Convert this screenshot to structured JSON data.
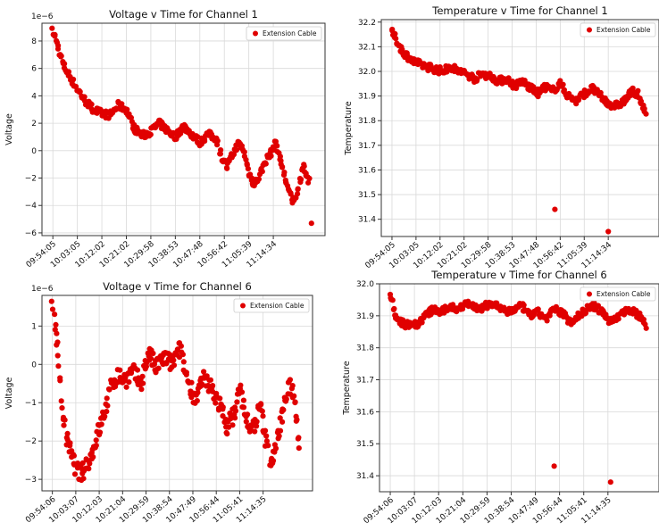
{
  "colors": {
    "marker": "#e00000",
    "grid": "#d9d9d9",
    "frame": "#333333"
  },
  "chart_data": [
    {
      "type": "scatter",
      "title": "Voltage v Time for Channel 1",
      "ylabel": "Voltage",
      "y_multiplier_label": "1e−6",
      "ylim": [
        -6.2,
        9.3
      ],
      "y_ticks": [
        -6,
        -4,
        -2,
        0,
        2,
        4,
        6,
        8
      ],
      "y_tick_labels": [
        "−6",
        "−4",
        "−2",
        "0",
        "2",
        "4",
        "6",
        "8"
      ],
      "x_tick_labels": [
        "09:54:05",
        "10:03:05",
        "10:12:02",
        "10:21:02",
        "10:29:58",
        "10:38:53",
        "10:47:48",
        "10:56:42",
        "11:05:39",
        "11:14:34"
      ],
      "legend": {
        "label": "Extension Cable",
        "position": "top-right"
      },
      "grid": true,
      "series": [
        {
          "name": "Extension Cable",
          "x_minutes": [
            0,
            1,
            2,
            3,
            4,
            6,
            8,
            10,
            12,
            15,
            18,
            21,
            24,
            27,
            30,
            33,
            36,
            39,
            42,
            45,
            48,
            51,
            54,
            57,
            60,
            62,
            64,
            66,
            68,
            70,
            72,
            74,
            76,
            78,
            80,
            82,
            84,
            86,
            88,
            90,
            91,
            92,
            93,
            94
          ],
          "values": [
            8.7,
            8.2,
            7.5,
            6.8,
            6.2,
            5.5,
            4.8,
            4.2,
            3.6,
            3.0,
            2.7,
            2.6,
            3.3,
            3.0,
            1.6,
            1.1,
            1.4,
            2.0,
            1.5,
            1.0,
            1.8,
            1.2,
            0.6,
            1.2,
            0.9,
            -0.4,
            -1.2,
            -0.3,
            0.5,
            0.1,
            -1.6,
            -2.5,
            -1.8,
            -0.8,
            -0.2,
            0.6,
            -1.0,
            -2.5,
            -3.7,
            -3.0,
            -2.0,
            -1.0,
            -1.6,
            -2.3
          ]
        },
        {
          "name": "Extension Cable",
          "x_minutes": [
            95
          ],
          "values": [
            -5.3
          ]
        }
      ]
    },
    {
      "type": "scatter",
      "title": "Temperature v Time for Channel 1",
      "ylabel": "Temperature",
      "ylim": [
        31.33,
        32.21
      ],
      "y_ticks": [
        31.4,
        31.5,
        31.6,
        31.7,
        31.8,
        31.9,
        32.0,
        32.1,
        32.2
      ],
      "y_tick_labels": [
        "31.4",
        "31.5",
        "31.6",
        "31.7",
        "31.8",
        "31.9",
        "32.0",
        "32.1",
        "32.2"
      ],
      "x_tick_labels": [
        "09:54:05",
        "10:03:05",
        "10:12:02",
        "10:21:02",
        "10:29:58",
        "10:38:53",
        "10:47:48",
        "10:56:42",
        "11:05:39",
        "11:14:34"
      ],
      "legend": {
        "label": "Extension Cable",
        "position": "top-right"
      },
      "grid": true,
      "series": [
        {
          "name": "Extension Cable",
          "x_minutes": [
            0,
            2,
            4,
            6,
            8,
            10,
            13,
            16,
            19,
            22,
            25,
            28,
            31,
            34,
            37,
            40,
            43,
            46,
            49,
            52,
            55,
            57,
            60,
            63,
            66,
            69,
            72,
            75,
            78,
            81,
            84,
            87,
            90,
            92,
            94,
            95
          ],
          "values": [
            32.16,
            32.12,
            32.08,
            32.06,
            32.04,
            32.03,
            32.02,
            32.01,
            32.0,
            32.02,
            32.0,
            31.99,
            31.97,
            31.99,
            31.98,
            31.96,
            31.97,
            31.94,
            31.96,
            31.93,
            31.91,
            31.94,
            31.92,
            31.95,
            31.9,
            31.88,
            31.91,
            31.93,
            31.9,
            31.87,
            31.86,
            31.88,
            31.92,
            31.91,
            31.85,
            31.83
          ]
        },
        {
          "name": "Extension Cable",
          "x_minutes": [
            61,
            81
          ],
          "values": [
            31.44,
            31.35
          ]
        }
      ]
    },
    {
      "type": "scatter",
      "title": "Voltage v Time for Channel 6",
      "ylabel": "Voltage",
      "y_multiplier_label": "1e−6",
      "ylim": [
        -3.3,
        1.8
      ],
      "y_ticks": [
        -3,
        -2,
        -1,
        0,
        1
      ],
      "y_tick_labels": [
        "−3",
        "−2",
        "−1",
        "0",
        "1"
      ],
      "x_tick_labels": [
        "09:54:06",
        "10:03:07",
        "10:12:03",
        "10:21:04",
        "10:29:59",
        "10:38:54",
        "10:47:49",
        "10:56:44",
        "11:05:41",
        "11:14:35"
      ],
      "legend": {
        "label": "Extension Cable",
        "position": "top-right"
      },
      "grid": true,
      "series": [
        {
          "name": "Extension Cable",
          "x_minutes": [
            0,
            1,
            2,
            3,
            4,
            5,
            7,
            9,
            11,
            13,
            15,
            17,
            19,
            21,
            23,
            25,
            28,
            31,
            34,
            37,
            40,
            43,
            46,
            49,
            52,
            55,
            58,
            61,
            64,
            67,
            70,
            72,
            74,
            76,
            78,
            80,
            82,
            84,
            86,
            88,
            90,
            92,
            94,
            95
          ],
          "values": [
            1.6,
            1.2,
            0.4,
            -0.6,
            -1.2,
            -1.8,
            -2.3,
            -2.7,
            -2.9,
            -2.6,
            -2.4,
            -1.9,
            -1.5,
            -1.0,
            -0.5,
            -0.3,
            -0.4,
            -0.2,
            -0.5,
            0.3,
            -0.1,
            0.2,
            0.0,
            0.4,
            -0.4,
            -0.9,
            -0.4,
            -0.6,
            -1.0,
            -1.6,
            -1.3,
            -0.6,
            -1.2,
            -1.8,
            -1.5,
            -1.1,
            -2.0,
            -2.5,
            -2.2,
            -1.4,
            -0.8,
            -0.5,
            -1.4,
            -2.2
          ]
        }
      ]
    },
    {
      "type": "scatter",
      "title": "Temperature v Time for Channel 6",
      "ylabel": "Temperature",
      "ylim": [
        31.35,
        32.0
      ],
      "y_ticks": [
        31.4,
        31.5,
        31.6,
        31.7,
        31.8,
        31.9,
        32.0
      ],
      "y_tick_labels": [
        "31.4",
        "31.5",
        "31.6",
        "31.7",
        "31.8",
        "31.9",
        "32.0"
      ],
      "x_tick_labels": [
        "09:54:06",
        "10:03:07",
        "10:12:03",
        "10:21:04",
        "10:29:59",
        "10:38:54",
        "10:47:49",
        "10:56:44",
        "11:05:41",
        "11:14:35"
      ],
      "legend": {
        "label": "Extension Cable",
        "position": "top-right"
      },
      "grid": true,
      "series": [
        {
          "name": "Extension Cable",
          "x_minutes": [
            0,
            1,
            2,
            4,
            6,
            8,
            10,
            13,
            16,
            19,
            22,
            25,
            28,
            31,
            34,
            37,
            40,
            43,
            46,
            49,
            52,
            55,
            58,
            61,
            64,
            67,
            70,
            73,
            76,
            79,
            82,
            85,
            88,
            91,
            93,
            95
          ],
          "values": [
            31.97,
            31.94,
            31.9,
            31.88,
            31.87,
            31.88,
            31.87,
            31.9,
            31.92,
            31.91,
            31.93,
            31.92,
            31.94,
            31.93,
            31.92,
            31.94,
            31.93,
            31.91,
            31.92,
            31.93,
            31.9,
            31.91,
            31.89,
            31.92,
            31.91,
            31.88,
            31.9,
            31.92,
            31.93,
            31.91,
            31.88,
            31.9,
            31.92,
            31.91,
            31.9,
            31.87
          ]
        },
        {
          "name": "Extension Cable",
          "x_minutes": [
            61,
            82
          ],
          "values": [
            31.43,
            31.38
          ]
        }
      ]
    }
  ]
}
